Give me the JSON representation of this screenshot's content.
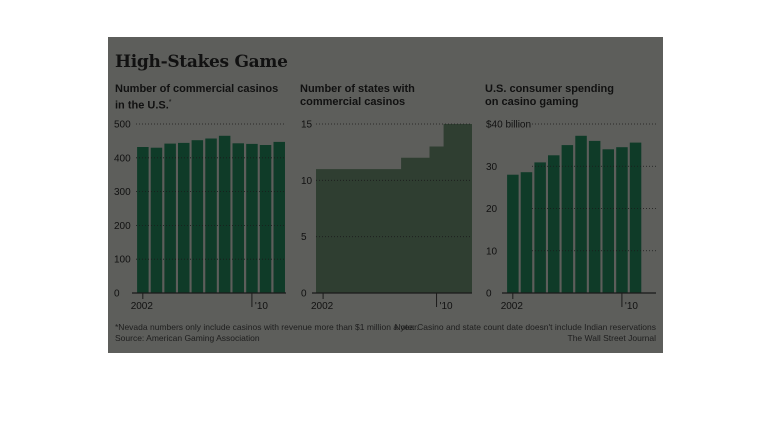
{
  "title": "High-Stakes Game",
  "chart_data": [
    {
      "type": "bar",
      "title": "Number of commercial casinos in the U.S.",
      "title_lines": [
        "Number of commercial casinos",
        "in the U.S."
      ],
      "title_marker": "*",
      "x_tick_labels": [
        "2002",
        "'10"
      ],
      "categories": [
        "2002",
        "2003",
        "2004",
        "2005",
        "2006",
        "2007",
        "2008",
        "2009",
        "2010",
        "2011",
        "2012"
      ],
      "values": [
        432,
        430,
        442,
        444,
        452,
        457,
        465,
        443,
        441,
        438,
        447
      ],
      "ylim": [
        0,
        500
      ],
      "yticks": [
        "0",
        "100",
        "200",
        "300",
        "400",
        "500"
      ],
      "grid": true,
      "bar_color": "#0f3b28"
    },
    {
      "type": "area",
      "title": "Number of states with commercial casinos",
      "title_lines": [
        "Number of states with",
        "commercial casinos"
      ],
      "x_tick_labels": [
        "2002",
        "'10"
      ],
      "categories": [
        "2002",
        "2003",
        "2004",
        "2005",
        "2006",
        "2007",
        "2008",
        "2009",
        "2010",
        "2011",
        "2012"
      ],
      "values": [
        11,
        11,
        11,
        11,
        11,
        11,
        12,
        12,
        13,
        15,
        15
      ],
      "ylim": [
        0,
        15
      ],
      "yticks": [
        "0",
        "5",
        "10",
        "15"
      ],
      "grid": true,
      "fill_color": "#2f3e31"
    },
    {
      "type": "bar",
      "title": "U.S. consumer spending on casino gaming",
      "title_lines": [
        "U.S. consumer spending",
        "on casino gaming"
      ],
      "x_tick_labels": [
        "2002",
        "'10"
      ],
      "categories": [
        "2002",
        "2003",
        "2004",
        "2005",
        "2006",
        "2007",
        "2008",
        "2009",
        "2010",
        "2011",
        "2012"
      ],
      "values": [
        28.0,
        28.6,
        30.9,
        32.6,
        35.0,
        37.2,
        36.0,
        34.0,
        34.5,
        35.6,
        null
      ],
      "ylim": [
        0,
        40
      ],
      "yticks": [
        "0",
        "10",
        "20",
        "30",
        "$40 billion"
      ],
      "grid": true,
      "bar_color": "#0f3b28"
    }
  ],
  "footnotes": {
    "left_1": "*Nevada numbers only include casinos with revenue more than $1 million a year.",
    "left_2": "Source: American Gaming Association",
    "right_1": "Note: Casino and state count date doesn't include Indian reservations",
    "right_2": "The Wall Street Journal"
  }
}
